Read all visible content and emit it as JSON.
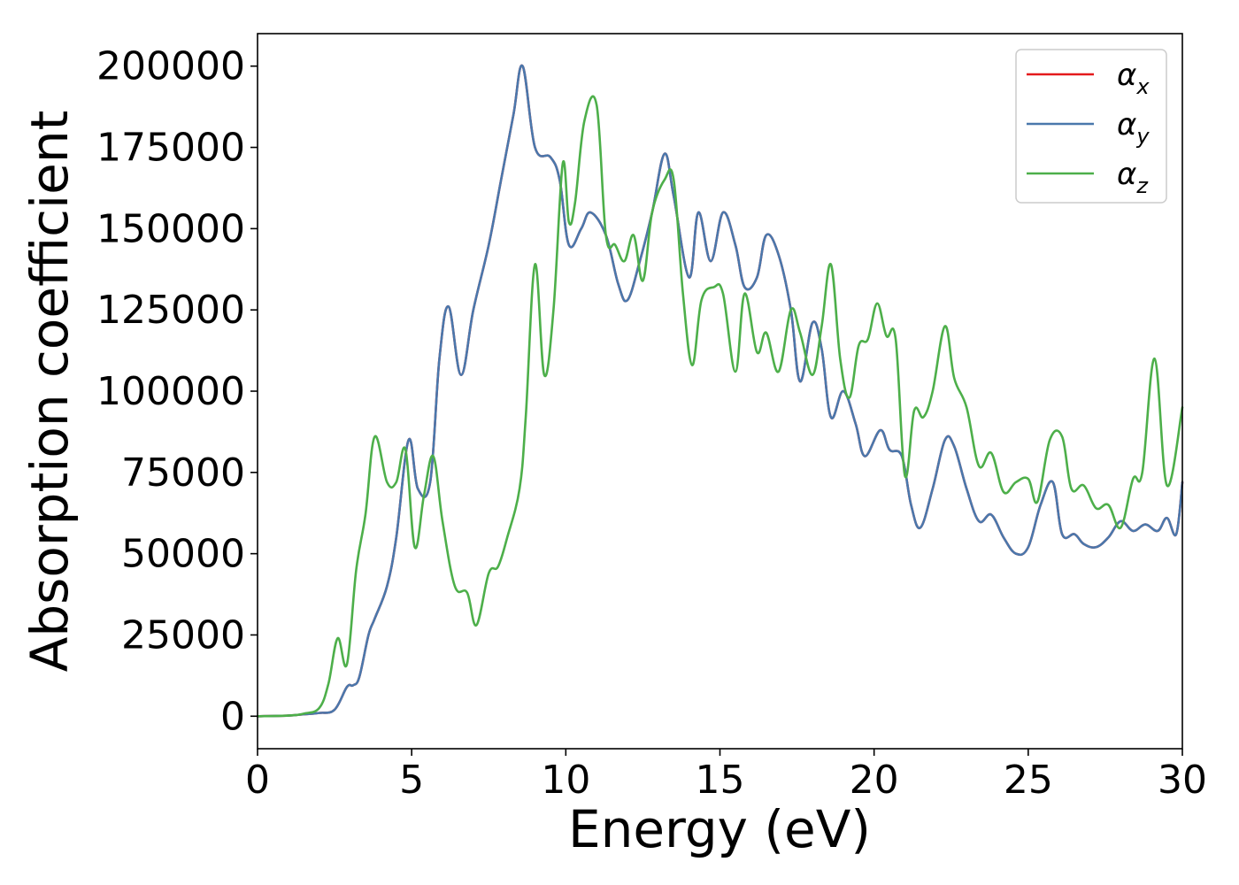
{
  "chart_data": {
    "type": "line",
    "title": "",
    "xlabel": "Energy (eV)",
    "ylabel": "Absorption coefficient",
    "xlim": [
      0,
      30
    ],
    "ylim": [
      -10000,
      210000
    ],
    "xticks": [
      0,
      5,
      10,
      15,
      20,
      25,
      30
    ],
    "yticks": [
      0,
      25000,
      50000,
      75000,
      100000,
      125000,
      150000,
      175000,
      200000
    ],
    "grid": false,
    "legend_position": "top-right",
    "series": [
      {
        "name": "αx",
        "legend_base": "α",
        "legend_sub": "x",
        "color": "#e41a1c",
        "x": [
          0,
          1,
          1.5,
          2,
          2.5,
          2.9,
          3.1,
          3.3,
          3.6,
          3.8,
          4.2,
          4.5,
          4.9,
          5.2,
          5.6,
          5.9,
          6.2,
          6.6,
          7,
          7.5,
          7.9,
          8.3,
          8.6,
          9,
          9.5,
          9.8,
          10.1,
          10.5,
          10.8,
          11.3,
          11.7,
          12,
          12.4,
          12.8,
          13.2,
          13.5,
          14,
          14.3,
          14.7,
          15.1,
          15.5,
          15.8,
          16.2,
          16.5,
          16.9,
          17.3,
          17.6,
          18,
          18.3,
          18.6,
          19,
          19.4,
          19.7,
          20.2,
          20.5,
          20.9,
          21.2,
          21.5,
          21.9,
          22.3,
          22.6,
          23,
          23.4,
          23.8,
          24.2,
          24.6,
          25,
          25.4,
          25.8,
          26.1,
          26.5,
          26.8,
          27.2,
          27.6,
          28,
          28.4,
          28.8,
          29.2,
          29.5,
          29.8,
          30
        ],
        "y": [
          0,
          200,
          600,
          1000,
          2000,
          9000,
          9500,
          12000,
          25000,
          30000,
          40000,
          55000,
          85000,
          70000,
          72000,
          110000,
          126000,
          105000,
          125000,
          145000,
          165000,
          185000,
          200000,
          175000,
          172000,
          165000,
          145000,
          150000,
          155000,
          148000,
          133000,
          128000,
          140000,
          155000,
          173000,
          160000,
          135000,
          155000,
          140000,
          155000,
          145000,
          132000,
          135000,
          148000,
          142000,
          125000,
          103000,
          121000,
          113000,
          92000,
          100000,
          90000,
          80000,
          88000,
          82000,
          80000,
          65000,
          58000,
          70000,
          85000,
          83000,
          70000,
          60000,
          62000,
          55000,
          50000,
          52000,
          65000,
          72000,
          56000,
          56000,
          53000,
          52000,
          55000,
          60000,
          57000,
          59000,
          57000,
          61000,
          56000,
          72000
        ]
      },
      {
        "name": "αy",
        "legend_base": "α",
        "legend_sub": "y",
        "color": "#4a78ac",
        "x": [
          0,
          1,
          1.5,
          2,
          2.5,
          2.9,
          3.1,
          3.3,
          3.6,
          3.8,
          4.2,
          4.5,
          4.9,
          5.2,
          5.6,
          5.9,
          6.2,
          6.6,
          7,
          7.5,
          7.9,
          8.3,
          8.6,
          9,
          9.5,
          9.8,
          10.1,
          10.5,
          10.8,
          11.3,
          11.7,
          12,
          12.4,
          12.8,
          13.2,
          13.5,
          14,
          14.3,
          14.7,
          15.1,
          15.5,
          15.8,
          16.2,
          16.5,
          16.9,
          17.3,
          17.6,
          18,
          18.3,
          18.6,
          19,
          19.4,
          19.7,
          20.2,
          20.5,
          20.9,
          21.2,
          21.5,
          21.9,
          22.3,
          22.6,
          23,
          23.4,
          23.8,
          24.2,
          24.6,
          25,
          25.4,
          25.8,
          26.1,
          26.5,
          26.8,
          27.2,
          27.6,
          28,
          28.4,
          28.8,
          29.2,
          29.5,
          29.8,
          30
        ],
        "y": [
          0,
          200,
          600,
          1000,
          2000,
          9000,
          9500,
          12000,
          25000,
          30000,
          40000,
          55000,
          85000,
          70000,
          72000,
          110000,
          126000,
          105000,
          125000,
          145000,
          165000,
          185000,
          200000,
          175000,
          172000,
          165000,
          145000,
          150000,
          155000,
          148000,
          133000,
          128000,
          140000,
          155000,
          173000,
          160000,
          135000,
          155000,
          140000,
          155000,
          145000,
          132000,
          135000,
          148000,
          142000,
          125000,
          103000,
          121000,
          113000,
          92000,
          100000,
          90000,
          80000,
          88000,
          82000,
          80000,
          65000,
          58000,
          70000,
          85000,
          83000,
          70000,
          60000,
          62000,
          55000,
          50000,
          52000,
          65000,
          72000,
          56000,
          56000,
          53000,
          52000,
          55000,
          60000,
          57000,
          59000,
          57000,
          61000,
          56000,
          72000
        ]
      },
      {
        "name": "αz",
        "legend_base": "α",
        "legend_sub": "z",
        "color": "#4daf4a",
        "x": [
          0,
          1,
          1.5,
          2,
          2.3,
          2.6,
          2.9,
          3.2,
          3.5,
          3.8,
          4.2,
          4.5,
          4.8,
          5.1,
          5.4,
          5.7,
          6,
          6.4,
          6.8,
          7.1,
          7.5,
          7.8,
          8.1,
          8.5,
          8.7,
          9,
          9.3,
          9.6,
          9.9,
          10.1,
          10.3,
          10.6,
          11,
          11.3,
          11.6,
          11.9,
          12.2,
          12.5,
          12.8,
          13.2,
          13.5,
          13.8,
          14.1,
          14.4,
          14.8,
          15.1,
          15.5,
          15.8,
          16.2,
          16.5,
          16.9,
          17.3,
          17.6,
          18,
          18.3,
          18.6,
          18.9,
          19.2,
          19.5,
          19.8,
          20.1,
          20.4,
          20.7,
          21,
          21.3,
          21.6,
          21.9,
          22.3,
          22.6,
          23,
          23.4,
          23.8,
          24.2,
          24.6,
          25,
          25.3,
          25.7,
          26.1,
          26.4,
          26.8,
          27.2,
          27.6,
          28,
          28.4,
          28.7,
          29.1,
          29.5,
          30
        ],
        "y": [
          0,
          200,
          800,
          2500,
          10000,
          24000,
          16000,
          45000,
          62000,
          86000,
          72000,
          72000,
          82000,
          52000,
          68000,
          80000,
          60000,
          40000,
          38000,
          28000,
          44000,
          46000,
          55000,
          70000,
          92000,
          139000,
          105000,
          125000,
          170000,
          152000,
          158000,
          183000,
          188000,
          148000,
          145000,
          140000,
          148000,
          134000,
          155000,
          165000,
          165000,
          130000,
          108000,
          128000,
          132000,
          130000,
          106000,
          130000,
          112000,
          118000,
          106000,
          125000,
          118000,
          105000,
          120000,
          139000,
          110000,
          98000,
          114000,
          116000,
          127000,
          117000,
          116000,
          74000,
          94000,
          92000,
          100000,
          120000,
          104000,
          95000,
          77000,
          81000,
          69000,
          72000,
          73000,
          66000,
          85000,
          86000,
          70000,
          71000,
          64000,
          65000,
          58000,
          73000,
          75000,
          110000,
          71000,
          95000
        ]
      }
    ]
  }
}
